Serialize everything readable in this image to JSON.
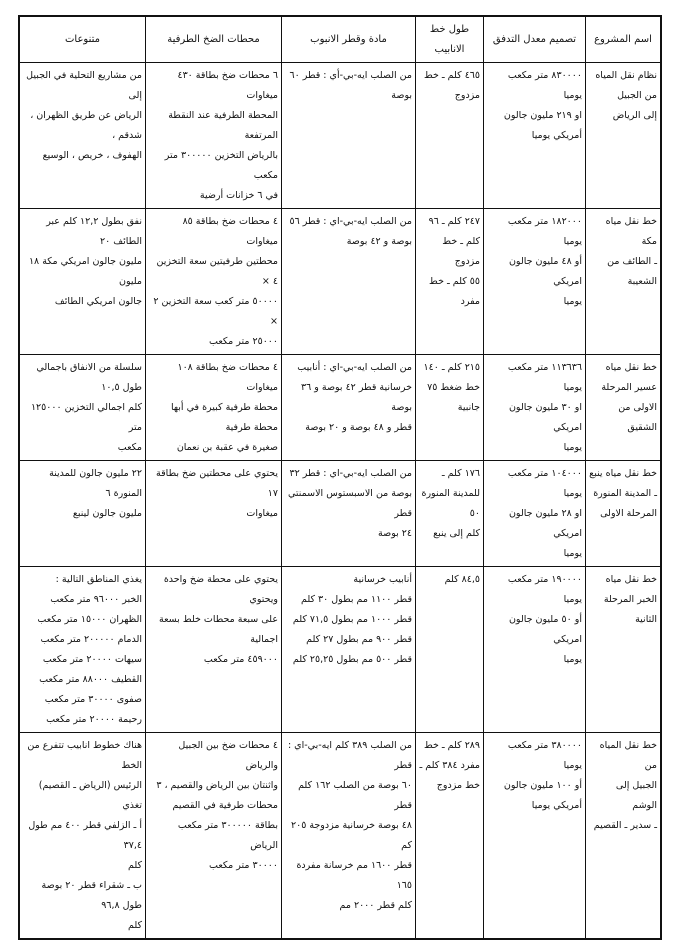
{
  "headers": [
    "اسم المشروع",
    "تصميم معدل التدفق",
    "طول خط الانابيب",
    "مادة وقطر الانبوب",
    "محطات الضخ الطرفية",
    "متنوعات"
  ],
  "rows": [
    [
      [
        "نظام نقل المياه",
        "من الجبيل",
        "إلى الرياض"
      ],
      [
        "٨٣٠٠٠٠ متر مكعب يوميا",
        "او ٢١٩ مليون جالون",
        "أمريكي يوميا"
      ],
      [
        "٤٦٥ كلم ـ خط",
        "مزدوج"
      ],
      [
        "من الصلب ايه-بي-أي : قطر ٦٠",
        "بوصة"
      ],
      [
        "٦ محطات ضخ بطاقة ٤٣٠ ميغاوات",
        "المحطة الطرفية عند النقطة المرتفعة",
        "بالرياض التخزين ٣٠٠٠٠٠ متر مكعب",
        "في ٦ خزانات أرضية"
      ],
      [
        "من مشاريع التحلية في الجبيل إلى",
        "الرياض عن طريق الظهران ، شدقم ،",
        "الهفوف ، خريص ، الوسيع"
      ]
    ],
    [
      [
        "خط نقل مياه مكة",
        "ـ الطائف من",
        "الشعيبة"
      ],
      [
        "١٨٢٠٠٠ متر مكعب يوميا",
        "أو ٤٨ مليون جالون امريكي",
        "يوميا"
      ],
      [
        "٢٤٧ كلم ـ ٩٦",
        "كلم ـ خط مزدوج",
        "٥٥ كلم ـ خط",
        "مفرد"
      ],
      [
        "من الصلب ايه-بي-اي : قطر ٥٦",
        "بوصة و ٤٢ بوصة"
      ],
      [
        "٤ محطات ضخ بطاقة ٨٥ ميغاوات",
        "محطتين طرفيتين سعة التخزين ٤ ×",
        "٥٠٠٠٠ متر كعب سعة التخزين ٢ ×",
        "٢٥٠٠٠ متر مكعب"
      ],
      [
        "نفق بطول ١٢,٢ كلم عبر الطائف ٢٠",
        "مليون جالون امريكي مكة ١٨ مليون",
        "جالون امريكي الطائف"
      ]
    ],
    [
      [
        "خط نقل مياه",
        "عسير المرحلة",
        "الاولى من الشقيق"
      ],
      [
        "١١٣٦٣٦ متر مكعب يوميا",
        "او ٣٠ مليون جالون امريكي",
        "يوميا"
      ],
      [
        "٢١٥ كلم ـ ١٤٠",
        "خط ضغط ٧٥",
        "جانبية"
      ],
      [
        "من الصلب ايه-بي-اي : أنابيب",
        "خرسانية قطر ٤٢ بوصة و ٣٦ بوصة",
        "قطر و ٤٨ بوصة و ٢٠ بوصة"
      ],
      [
        "٤ محطات ضخ بطاقة ١٠٨ ميغاوات",
        "محطة طرفية كبيرة في أبها محطة طرفية",
        "صغيرة في عقبة بن نعمان"
      ],
      [
        "سلسلة من الانفاق باجمالي طول ١٠,٥",
        "كلم اجمالي التخزين ١٢٥٠٠٠ متر",
        "مكعب"
      ]
    ],
    [
      [
        "خط نقل مياه ينبع",
        "ـ المدينة المنورة",
        "المرحلة الاولى"
      ],
      [
        "١٠٤٠٠٠ متر مكعب يوميا",
        "او ٢٨ مليون جالون امريكي",
        "يوميا"
      ],
      [
        "١٧٦ كلم ـ",
        "للمدينة المنورة ٥٠",
        "كلم إلى ينبع"
      ],
      [
        "من الصلب ايه-بي-اي : قطر ٣٢",
        "بوصة من الاسبستوس الاسمنتي قطر",
        "٢٤ بوصة"
      ],
      [
        "يحتوي على محطتين ضخ بطاقة ١٧",
        "ميغاوات"
      ],
      [
        "٢٢ مليون جالون للمدينة المنورة ٦",
        "مليون جالون لينبع"
      ]
    ],
    [
      [
        "خط نقل مياه",
        "الخبر المرحلة",
        "الثانية"
      ],
      [
        "١٩٠٠٠٠ متر مكعب يوميا",
        "أو ٥٠ مليون جالون امريكي",
        "يوميا"
      ],
      [
        "٨٤,٥ كلم"
      ],
      [
        "أنابيب خرسانية",
        "قطر ١١٠٠ مم بطول ٣٠ كلم",
        "قطر ١٠٠٠ مم بطول ٧١,٥ كلم",
        "قطر ٩٠٠ مم بطول ٢٧ كلم",
        "قطر ٥٠٠ مم بطول ٢٥,٢٥ كلم"
      ],
      [
        "يحتوي على محطة ضخ واحدة ويحتوي",
        "على سبعة محطات خلط بسعة اجمالية",
        "٤٥٩٠٠٠ متر مكعب"
      ],
      [
        "يغذي المناطق التالية :",
        "الخبر ٩٦٠٠٠ متر مكعب",
        "الظهران ١٥٠٠٠ متر مكعب",
        "الدمام ٢٠٠٠٠٠ متر مكعب",
        "سيهات ٢٠٠٠٠ متر مكعب",
        "القطيف ٨٨٠٠٠ متر مكعب",
        "صفوى ٣٠٠٠٠ متر مكعب",
        "رحيمة ٢٠٠٠٠ متر مكعب"
      ]
    ],
    [
      [
        "خط نقل المياه من",
        "الجبيل إلى الوشم",
        "ـ سدير ـ القصيم"
      ],
      [
        "٣٨٠٠٠٠ متر مكعب يوميا",
        "أو ١٠٠ مليون جالون",
        "أمريكي يوميا"
      ],
      [
        "٢٨٩ كلم ـ خط",
        "مفرد ٣٨٤ كلم ـ",
        "خط مزدوج"
      ],
      [
        "من الصلب ٣٨٩ كلم ايه-بي-اي : قطر",
        "٦٠ بوصة من الصلب ١٦٢ كلم قطر",
        "٤٨ بوصة خرسانية مزدوجة ٢٠٥ كم",
        "قطر ١٦٠٠ مم خرسانة مفردة ١٦٥",
        "كلم قطر ٢٠٠٠ مم"
      ],
      [
        "٤ محطات ضخ بين الجبيل والرياض",
        "واثنتان بين الرياض والقصيم ، ٣",
        "محطات طرفية في القصيم",
        "بطاقة ٣٠٠٠٠٠ متر مكعب الرياض",
        "٣٠٠٠٠ متر مكعب"
      ],
      [
        "هناك خطوط انابيب تتفرع من الخط",
        "الرئيس (الرياض ـ القصيم) تغذي",
        "أ ـ الزلفي قطر ٤٠٠ مم طول ٣٧,٤",
        "كلم",
        "ب ـ شقراء قطر ٢٠ بوصة طول ٩٦,٨",
        "كلم"
      ]
    ]
  ]
}
